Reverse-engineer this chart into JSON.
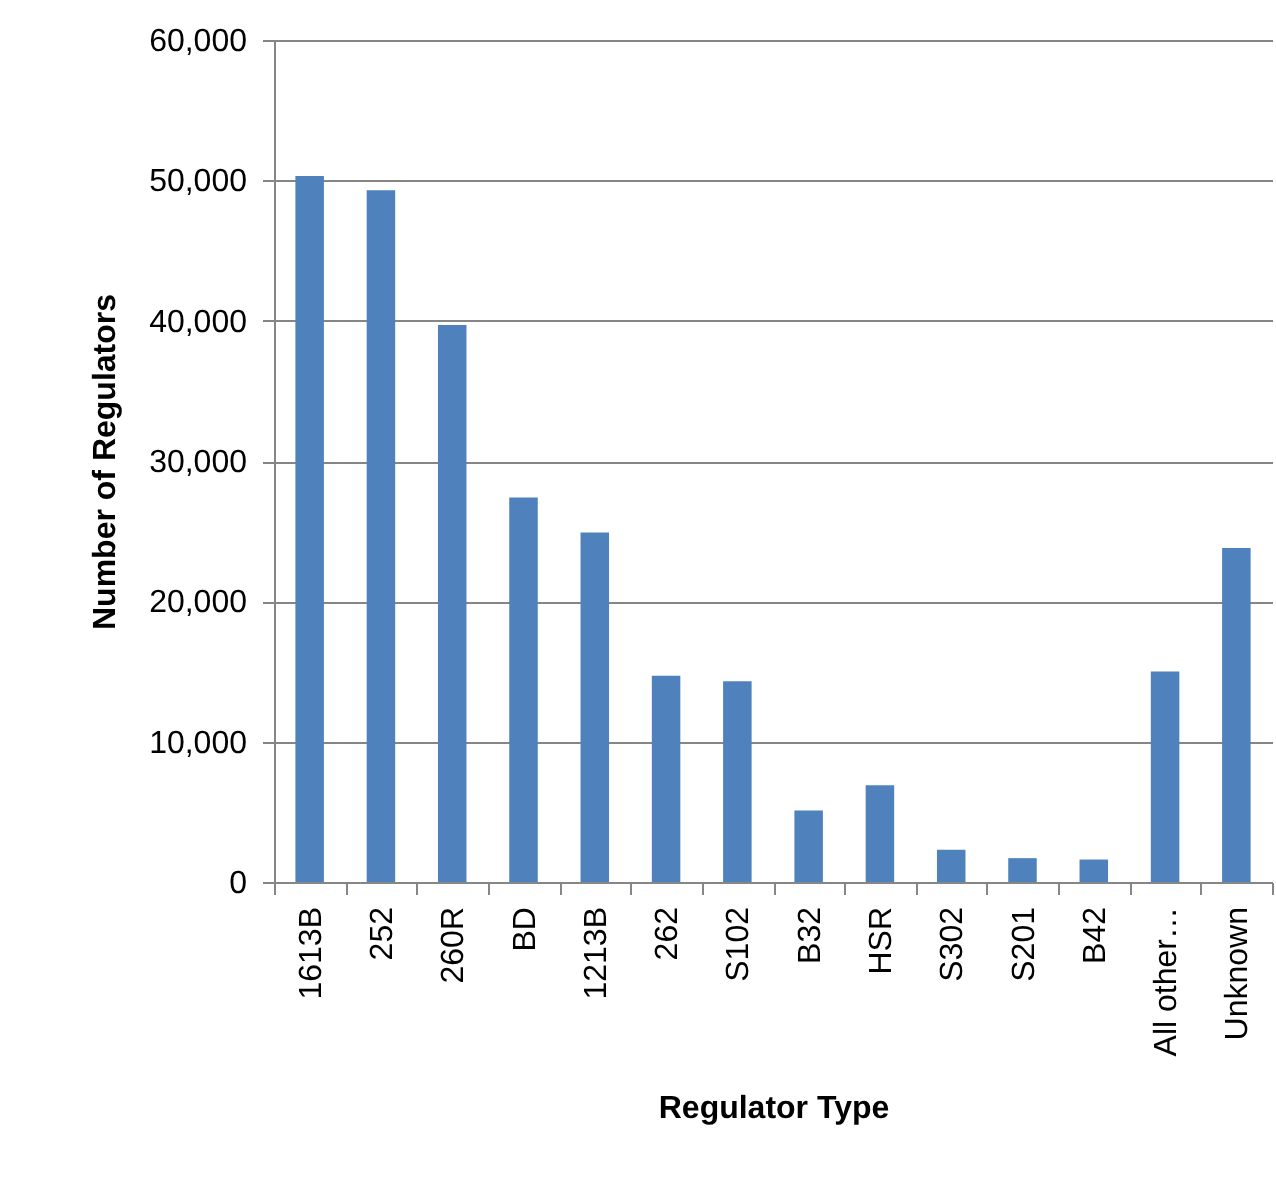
{
  "chart_data": {
    "type": "bar",
    "xlabel": "Regulator Type",
    "ylabel": "Number of Regulators",
    "categories": [
      "1613B",
      "252",
      "260R",
      "BD",
      "1213B",
      "262",
      "S102",
      "B32",
      "HSR",
      "S302",
      "S201",
      "B42",
      "All other…",
      "Unknown"
    ],
    "values": [
      50300,
      49300,
      39700,
      27400,
      24900,
      14700,
      14300,
      5100,
      6900,
      2300,
      1700,
      1600,
      15000,
      23800
    ],
    "color": "#4f81bd",
    "ylim": [
      0,
      60000
    ],
    "yticks": [
      {
        "value": 0,
        "label": "0"
      },
      {
        "value": 10000,
        "label": "10,000"
      },
      {
        "value": 20000,
        "label": "20,000"
      },
      {
        "value": 30000,
        "label": "30,000"
      },
      {
        "value": 40000,
        "label": "40,000"
      },
      {
        "value": 50000,
        "label": "50,000"
      },
      {
        "value": 60000,
        "label": "60,000"
      }
    ],
    "grid": "y"
  }
}
